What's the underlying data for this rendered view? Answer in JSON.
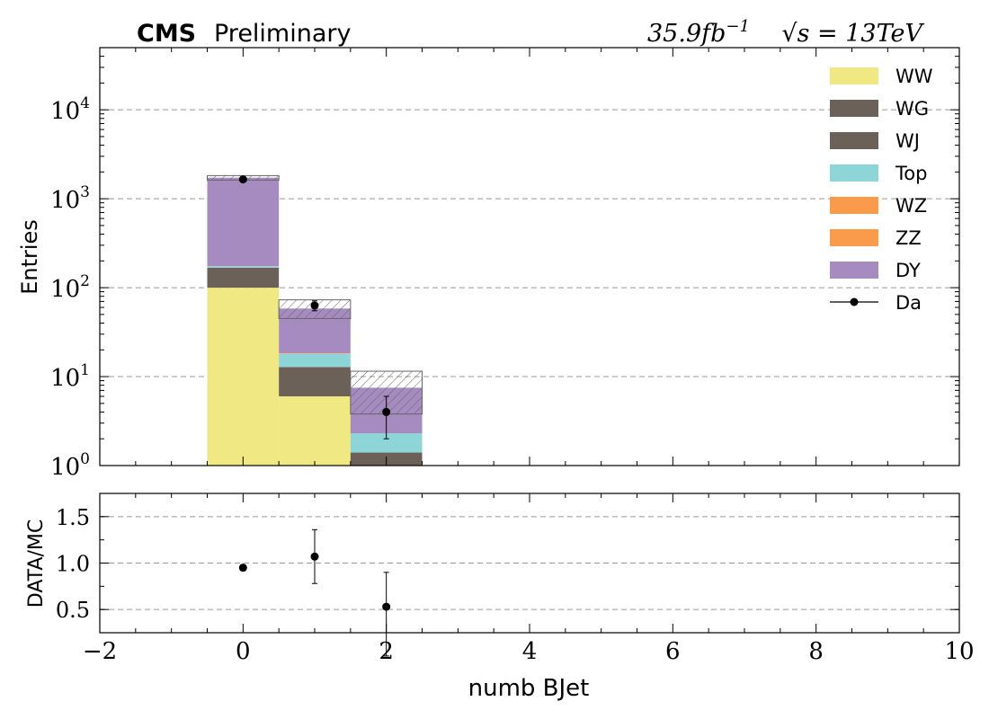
{
  "header": {
    "cms": "CMS",
    "preliminary": "Preliminary",
    "lumi": "35.9fb",
    "lumi_exp": "−1",
    "sqrt_s": "√s = 13TeV"
  },
  "chart_data": {
    "type": "bar",
    "xlabel": "numb BJet",
    "ylabel": "Entries",
    "ratio_ylabel": "DATA/MC",
    "xlim": [
      -2,
      10
    ],
    "x_ticks": [
      -2,
      0,
      2,
      4,
      6,
      8,
      10
    ],
    "x_tick_labels": [
      "−2",
      "0",
      "2",
      "4",
      "6",
      "8",
      "10"
    ],
    "ylim": [
      1,
      50000
    ],
    "yscale": "log",
    "y_ticks": [
      1,
      10,
      100,
      1000,
      10000
    ],
    "y_tick_labels": [
      {
        "base": "10",
        "exp": "0"
      },
      {
        "base": "10",
        "exp": "1"
      },
      {
        "base": "10",
        "exp": "2"
      },
      {
        "base": "10",
        "exp": "3"
      },
      {
        "base": "10",
        "exp": "4"
      }
    ],
    "bins": [
      0,
      1,
      2
    ],
    "bin_width": 1,
    "series": [
      {
        "name": "WW",
        "color": "#f0e882",
        "values": [
          100,
          6,
          0
        ]
      },
      {
        "name": "WG",
        "color": "#6c6158",
        "values": [
          0,
          0,
          0
        ]
      },
      {
        "name": "WJ",
        "color": "#6c6158",
        "values": [
          68,
          6.8,
          1.4
        ]
      },
      {
        "name": "Top",
        "color": "#8ed5d8",
        "values": [
          6,
          5.2,
          0.9
        ]
      },
      {
        "name": "WZ",
        "color": "#f99b4a",
        "values": [
          0.5,
          0.2,
          0
        ]
      },
      {
        "name": "ZZ",
        "color": "#f99b4a",
        "values": [
          0.3,
          0.1,
          0
        ]
      },
      {
        "name": "DY",
        "color": "#a68bc0",
        "values": [
          1550,
          40,
          5.2
        ]
      }
    ],
    "uncertainty_band": {
      "lower": [
        1620,
        45,
        3.8
      ],
      "upper": [
        1820,
        73,
        11.5
      ]
    },
    "data": {
      "name": "Da",
      "values": [
        1650,
        63,
        4
      ],
      "errors_low": [
        40,
        8,
        2
      ],
      "errors_high": [
        40,
        8,
        2
      ]
    },
    "ratio": {
      "ylim": [
        0.25,
        1.75
      ],
      "y_ticks": [
        0.5,
        1.0,
        1.5
      ],
      "y_tick_labels": [
        "0.5",
        "1.0",
        "1.5"
      ],
      "values": [
        0.95,
        1.07,
        0.53
      ],
      "errors_low": [
        0.03,
        0.29,
        0.53
      ],
      "errors_high": [
        0.03,
        0.29,
        0.37
      ]
    },
    "grid": "horizontal-dashed",
    "legend_position": "top-right"
  }
}
